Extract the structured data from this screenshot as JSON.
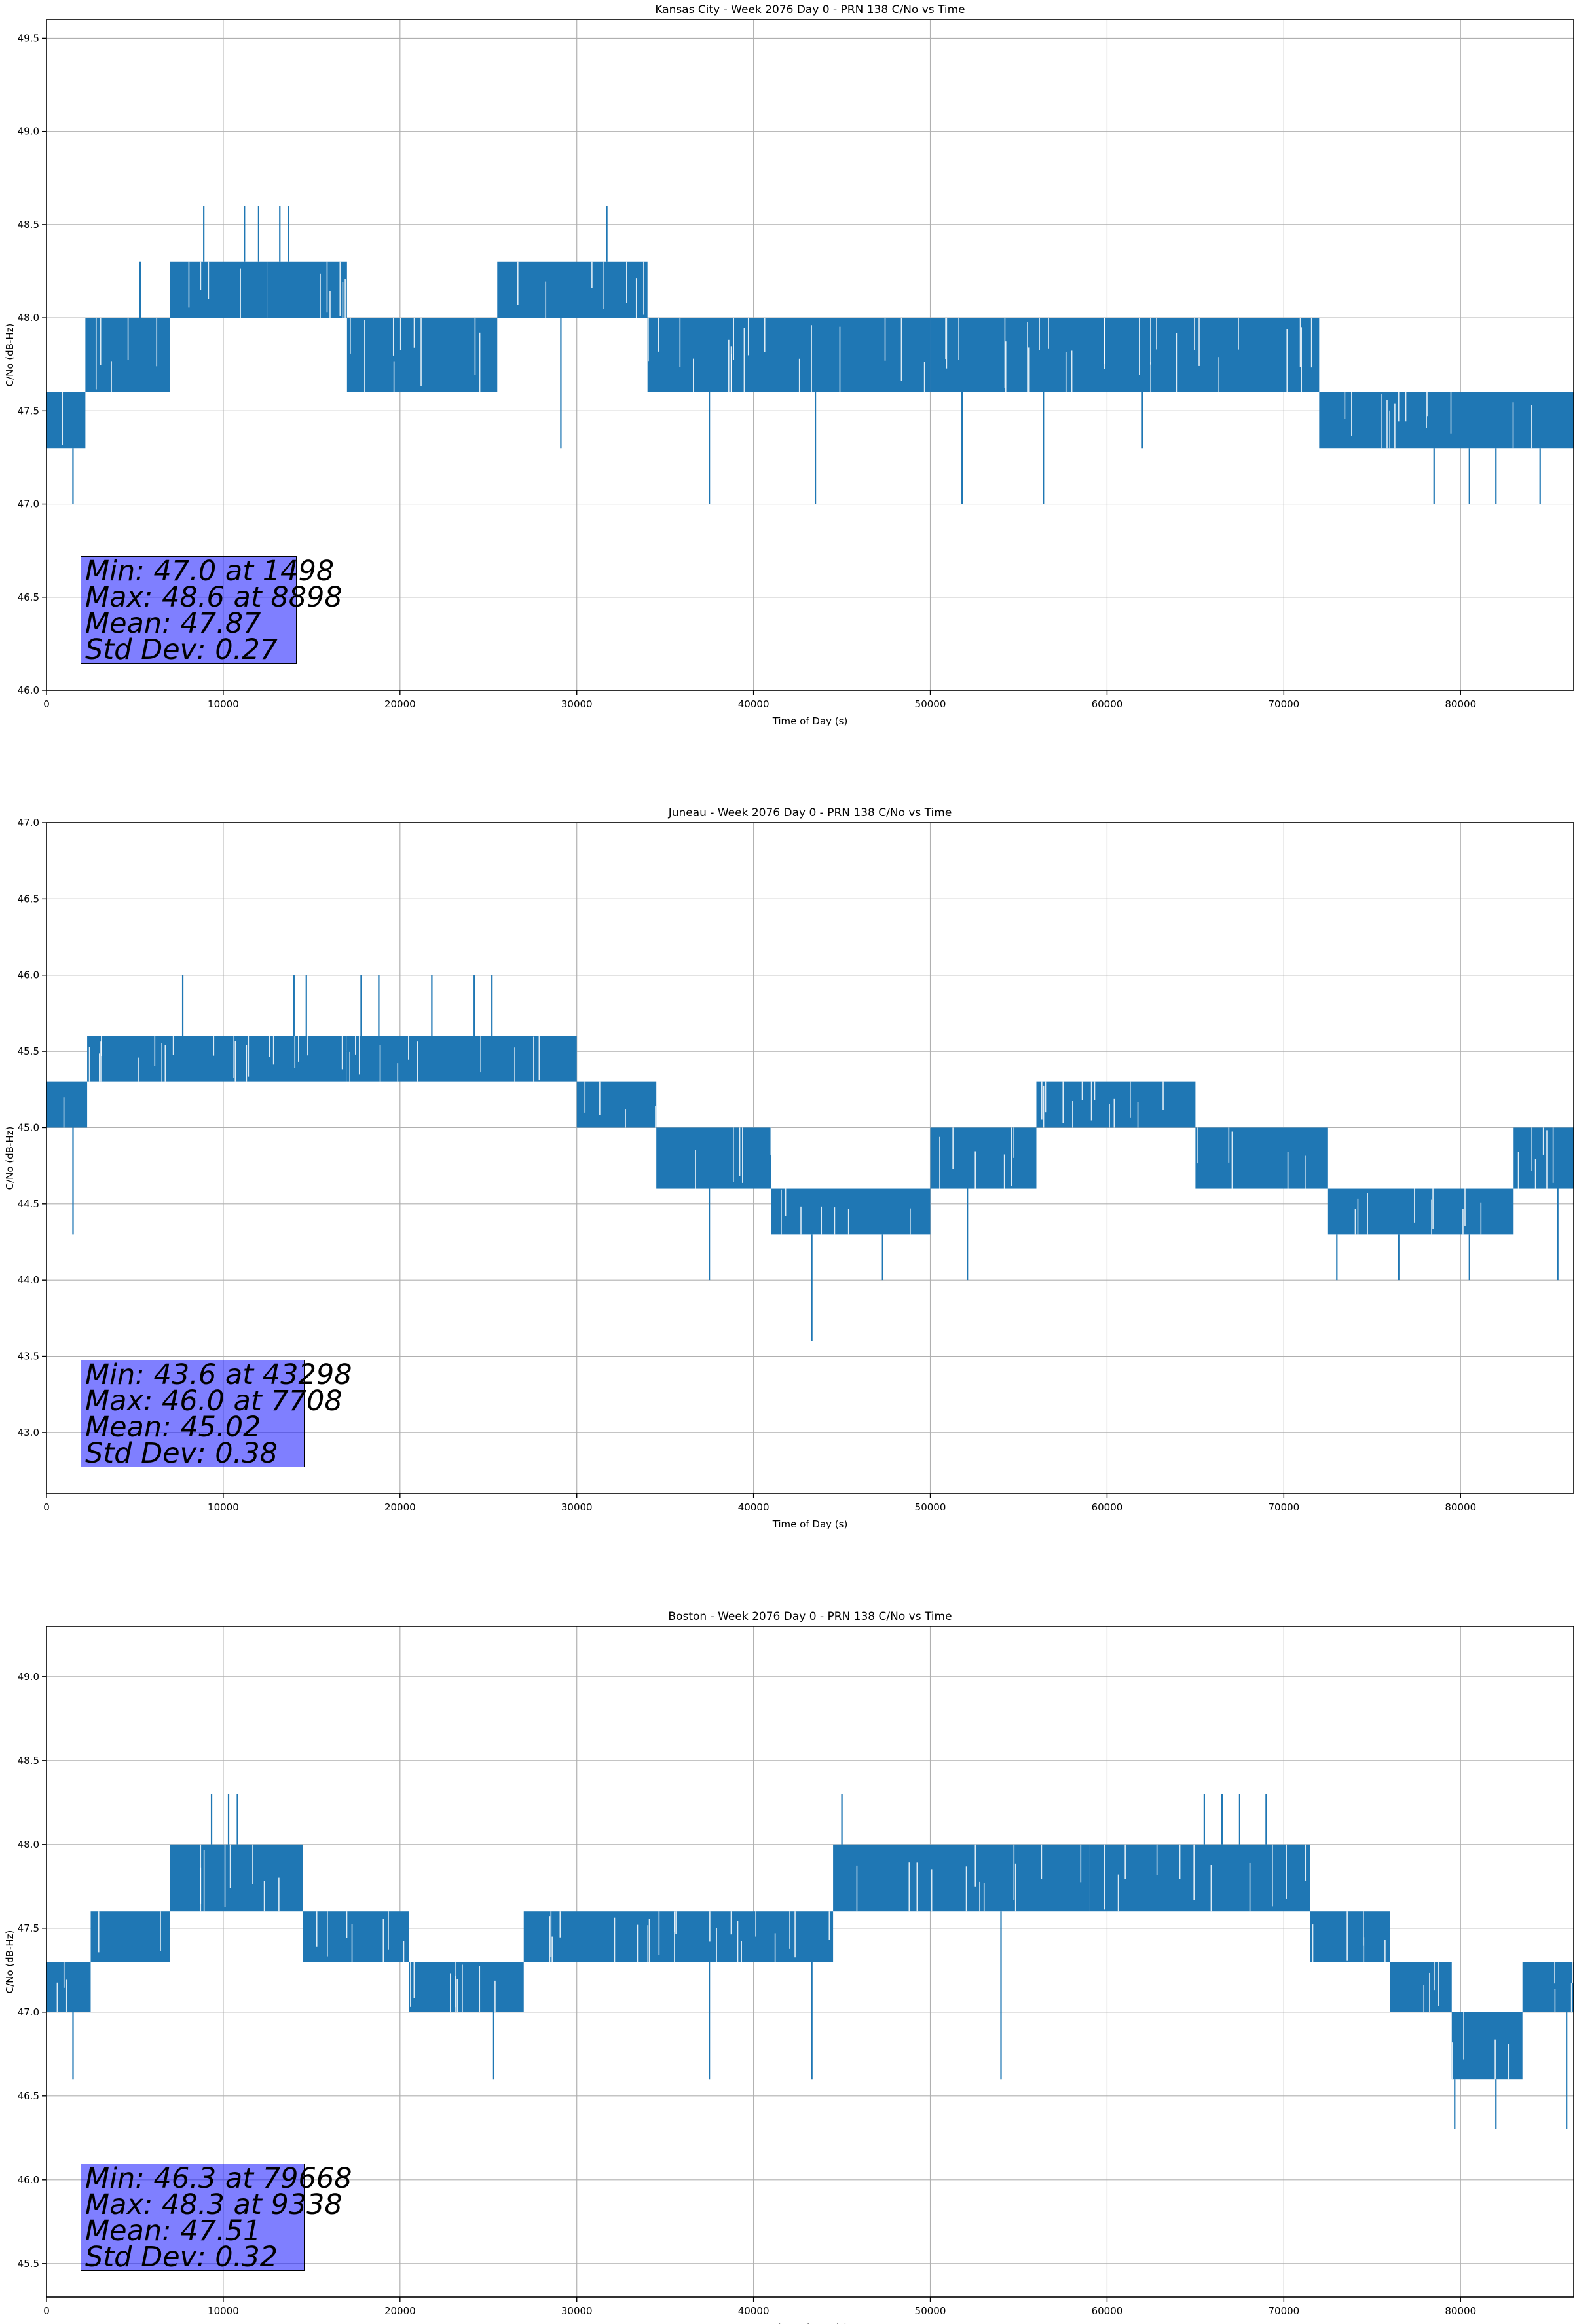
{
  "colors": {
    "series": "#1f77b4",
    "grid": "#b0b0b0",
    "stats_box": "#8080ff",
    "axes": "#000000"
  },
  "chart_data": [
    {
      "type": "line",
      "title": "Kansas City - Week 2076 Day 0 - PRN 138 C/No vs Time",
      "xlabel": "Time of Day (s)",
      "ylabel": "C/No (dB-Hz)",
      "xlim": [
        0,
        86400
      ],
      "ylim": [
        46.0,
        49.6
      ],
      "grid": true,
      "xticks": [
        0,
        10000,
        20000,
        30000,
        40000,
        50000,
        60000,
        70000,
        80000
      ],
      "xtick_labels": [
        "0",
        "10000",
        "20000",
        "30000",
        "40000",
        "50000",
        "60000",
        "70000",
        "80000"
      ],
      "yticks": [
        46.0,
        46.5,
        47.0,
        47.5,
        48.0,
        48.5,
        49.0,
        49.5
      ],
      "ytick_labels": [
        "46.0",
        "46.5",
        "47.0",
        "47.5",
        "48.0",
        "48.5",
        "49.0",
        "49.5"
      ],
      "series_color": "#1f77b4",
      "band_segments": [
        {
          "x": [
            0,
            2200
          ],
          "y": [
            47.3,
            47.6
          ]
        },
        {
          "x": [
            2200,
            7000
          ],
          "y": [
            47.6,
            48.0
          ]
        },
        {
          "x": [
            7000,
            12500
          ],
          "y": [
            48.0,
            48.3
          ]
        },
        {
          "x": [
            12500,
            17000
          ],
          "y": [
            48.0,
            48.3
          ]
        },
        {
          "x": [
            17000,
            25500
          ],
          "y": [
            47.6,
            48.0
          ]
        },
        {
          "x": [
            25500,
            34000
          ],
          "y": [
            48.0,
            48.3
          ]
        },
        {
          "x": [
            34000,
            50000
          ],
          "y": [
            47.6,
            48.0
          ]
        },
        {
          "x": [
            50000,
            72000
          ],
          "y": [
            47.6,
            48.0
          ]
        },
        {
          "x": [
            72000,
            86400
          ],
          "y": [
            47.3,
            47.6
          ]
        }
      ],
      "spikes": [
        {
          "x": 1498,
          "y": 47.0
        },
        {
          "x": 5300,
          "y": 48.3
        },
        {
          "x": 8898,
          "y": 48.6
        },
        {
          "x": 11200,
          "y": 48.6
        },
        {
          "x": 12000,
          "y": 48.6
        },
        {
          "x": 13200,
          "y": 48.6
        },
        {
          "x": 13700,
          "y": 48.6
        },
        {
          "x": 31700,
          "y": 48.6
        },
        {
          "x": 29100,
          "y": 47.3
        },
        {
          "x": 37500,
          "y": 47.0
        },
        {
          "x": 43500,
          "y": 47.0
        },
        {
          "x": 51800,
          "y": 47.0
        },
        {
          "x": 56400,
          "y": 47.0
        },
        {
          "x": 62000,
          "y": 47.3
        },
        {
          "x": 78500,
          "y": 47.0
        },
        {
          "x": 80500,
          "y": 47.0
        },
        {
          "x": 82000,
          "y": 47.0
        },
        {
          "x": 84500,
          "y": 47.0
        }
      ],
      "stats": {
        "min": "Min: 47.0 at 1498",
        "max": "Max: 48.6 at 8898",
        "mean": "Mean: 47.87",
        "std": "Std Dev: 0.27"
      }
    },
    {
      "type": "line",
      "title": "Juneau - Week 2076 Day 0 - PRN 138 C/No vs Time",
      "xlabel": "Time of Day (s)",
      "ylabel": "C/No (dB-Hz)",
      "xlim": [
        0,
        86400
      ],
      "ylim": [
        42.6,
        47.0
      ],
      "grid": true,
      "xticks": [
        0,
        10000,
        20000,
        30000,
        40000,
        50000,
        60000,
        70000,
        80000
      ],
      "xtick_labels": [
        "0",
        "10000",
        "20000",
        "30000",
        "40000",
        "50000",
        "60000",
        "70000",
        "80000"
      ],
      "yticks": [
        43.0,
        43.5,
        44.0,
        44.5,
        45.0,
        45.5,
        46.0,
        46.5,
        47.0
      ],
      "ytick_labels": [
        "43.0",
        "43.5",
        "44.0",
        "44.5",
        "45.0",
        "45.5",
        "46.0",
        "46.5",
        "47.0"
      ],
      "series_color": "#1f77b4",
      "band_segments": [
        {
          "x": [
            0,
            2300
          ],
          "y": [
            45.0,
            45.3
          ]
        },
        {
          "x": [
            2300,
            17000
          ],
          "y": [
            45.3,
            45.6
          ]
        },
        {
          "x": [
            17000,
            30000
          ],
          "y": [
            45.3,
            45.6
          ]
        },
        {
          "x": [
            30000,
            34500
          ],
          "y": [
            45.0,
            45.3
          ]
        },
        {
          "x": [
            34500,
            41000
          ],
          "y": [
            44.6,
            45.0
          ]
        },
        {
          "x": [
            41000,
            50000
          ],
          "y": [
            44.3,
            44.6
          ]
        },
        {
          "x": [
            50000,
            56000
          ],
          "y": [
            44.6,
            45.0
          ]
        },
        {
          "x": [
            56000,
            65000
          ],
          "y": [
            45.0,
            45.3
          ]
        },
        {
          "x": [
            65000,
            72500
          ],
          "y": [
            44.6,
            45.0
          ]
        },
        {
          "x": [
            72500,
            83000
          ],
          "y": [
            44.3,
            44.6
          ]
        },
        {
          "x": [
            83000,
            86400
          ],
          "y": [
            44.6,
            45.0
          ]
        }
      ],
      "spikes": [
        {
          "x": 1500,
          "y": 44.3
        },
        {
          "x": 7708,
          "y": 46.0
        },
        {
          "x": 14000,
          "y": 46.0
        },
        {
          "x": 14700,
          "y": 46.0
        },
        {
          "x": 17800,
          "y": 46.0
        },
        {
          "x": 18800,
          "y": 46.0
        },
        {
          "x": 21800,
          "y": 46.0
        },
        {
          "x": 24200,
          "y": 46.0
        },
        {
          "x": 25200,
          "y": 46.0
        },
        {
          "x": 37500,
          "y": 44.0
        },
        {
          "x": 43298,
          "y": 43.6
        },
        {
          "x": 47300,
          "y": 44.0
        },
        {
          "x": 52100,
          "y": 44.0
        },
        {
          "x": 73000,
          "y": 44.0
        },
        {
          "x": 76500,
          "y": 44.0
        },
        {
          "x": 80500,
          "y": 44.0
        },
        {
          "x": 85500,
          "y": 44.0
        }
      ],
      "stats": {
        "min": "Min: 43.6 at 43298",
        "max": "Max: 46.0 at 7708",
        "mean": "Mean: 45.02",
        "std": "Std Dev: 0.38"
      }
    },
    {
      "type": "line",
      "title": "Boston - Week 2076 Day 0 - PRN 138 C/No vs Time",
      "xlabel": "Time of Day (s)",
      "ylabel": "C/No (dB-Hz)",
      "xlim": [
        0,
        86400
      ],
      "ylim": [
        45.3,
        49.3
      ],
      "grid": true,
      "xticks": [
        0,
        10000,
        20000,
        30000,
        40000,
        50000,
        60000,
        70000,
        80000
      ],
      "xtick_labels": [
        "0",
        "10000",
        "20000",
        "30000",
        "40000",
        "50000",
        "60000",
        "70000",
        "80000"
      ],
      "yticks": [
        45.5,
        46.0,
        46.5,
        47.0,
        47.5,
        48.0,
        48.5,
        49.0
      ],
      "ytick_labels": [
        "45.5",
        "46.0",
        "46.5",
        "47.0",
        "47.5",
        "48.0",
        "48.5",
        "49.0"
      ],
      "series_color": "#1f77b4",
      "band_segments": [
        {
          "x": [
            0,
            2500
          ],
          "y": [
            47.0,
            47.3
          ]
        },
        {
          "x": [
            2500,
            7000
          ],
          "y": [
            47.3,
            47.6
          ]
        },
        {
          "x": [
            7000,
            14500
          ],
          "y": [
            47.6,
            48.0
          ]
        },
        {
          "x": [
            14500,
            20500
          ],
          "y": [
            47.3,
            47.6
          ]
        },
        {
          "x": [
            20500,
            27000
          ],
          "y": [
            47.0,
            47.3
          ]
        },
        {
          "x": [
            27000,
            44500
          ],
          "y": [
            47.3,
            47.6
          ]
        },
        {
          "x": [
            44500,
            55000
          ],
          "y": [
            47.6,
            48.0
          ]
        },
        {
          "x": [
            55000,
            59000
          ],
          "y": [
            47.6,
            48.0
          ]
        },
        {
          "x": [
            59000,
            71500
          ],
          "y": [
            47.6,
            48.0
          ]
        },
        {
          "x": [
            71500,
            76000
          ],
          "y": [
            47.3,
            47.6
          ]
        },
        {
          "x": [
            76000,
            79500
          ],
          "y": [
            47.0,
            47.3
          ]
        },
        {
          "x": [
            79500,
            83500
          ],
          "y": [
            46.6,
            47.0
          ]
        },
        {
          "x": [
            83500,
            86400
          ],
          "y": [
            47.0,
            47.3
          ]
        }
      ],
      "spikes": [
        {
          "x": 1500,
          "y": 46.6
        },
        {
          "x": 9338,
          "y": 48.3
        },
        {
          "x": 10300,
          "y": 48.3
        },
        {
          "x": 10800,
          "y": 48.3
        },
        {
          "x": 25300,
          "y": 46.6
        },
        {
          "x": 37500,
          "y": 46.6
        },
        {
          "x": 43300,
          "y": 46.6
        },
        {
          "x": 45000,
          "y": 48.3
        },
        {
          "x": 54000,
          "y": 46.6
        },
        {
          "x": 65500,
          "y": 48.3
        },
        {
          "x": 66500,
          "y": 48.3
        },
        {
          "x": 67500,
          "y": 48.3
        },
        {
          "x": 69000,
          "y": 48.3
        },
        {
          "x": 79668,
          "y": 46.3
        },
        {
          "x": 82000,
          "y": 46.3
        },
        {
          "x": 86000,
          "y": 46.3
        }
      ],
      "stats": {
        "min": "Min: 46.3 at 79668",
        "max": "Max: 48.3 at 9338",
        "mean": "Mean: 47.51",
        "std": "Std Dev: 0.32"
      }
    }
  ]
}
